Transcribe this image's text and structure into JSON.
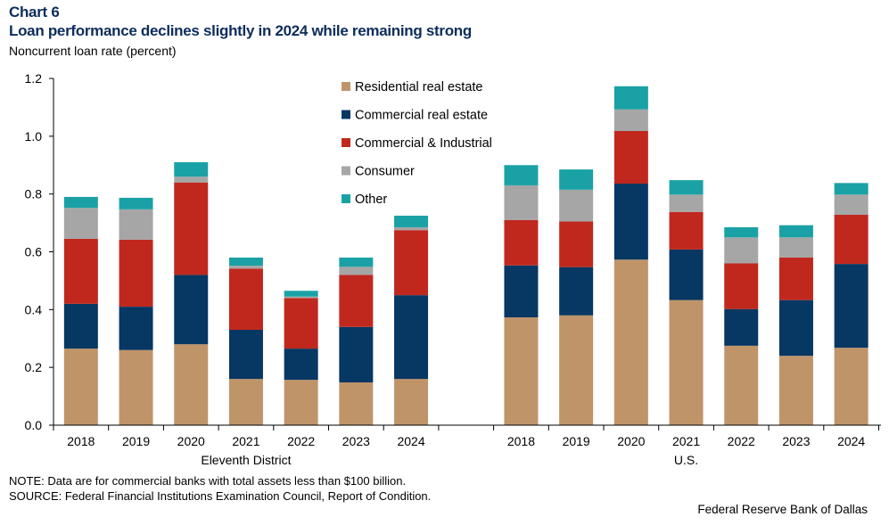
{
  "header": {
    "chart_label": "Chart 6",
    "title": "Loan performance declines slightly in 2024 while remaining strong",
    "ylabel": "Noncurrent  loan rate (percent)"
  },
  "footer": {
    "note": "NOTE: Data are for commercial banks with total assets less than $100 billion.",
    "source": "SOURCE: Federal Financial Institutions  Examination Council, Report of Condition.",
    "credit": "Federal Reserve Bank of Dallas"
  },
  "colors": {
    "residential": "#c09469",
    "commercial_re": "#073763",
    "ci": "#c0281e",
    "consumer": "#a6a6a6",
    "other": "#1aa1a6"
  },
  "chart_data": {
    "type": "bar",
    "stacked": true,
    "title": "Loan performance declines slightly in 2024 while remaining strong",
    "ylabel": "Noncurrent  loan rate (percent)",
    "ylim": [
      0,
      1.2
    ],
    "yticks": [
      "0.0",
      "0.2",
      "0.4",
      "0.6",
      "0.8",
      "1.0",
      "1.2"
    ],
    "legend_position": "top-center",
    "groups": [
      {
        "name": "Eleventh  District",
        "categories": [
          "2018",
          "2019",
          "2020",
          "2021",
          "2022",
          "2023",
          "2024"
        ],
        "series": [
          {
            "name": "Residential  real estate",
            "color_key": "residential",
            "values": [
              0.265,
              0.26,
              0.28,
              0.16,
              0.157,
              0.148,
              0.16
            ]
          },
          {
            "name": "Commercial real estate",
            "color_key": "commercial_re",
            "values": [
              0.155,
              0.15,
              0.24,
              0.17,
              0.108,
              0.192,
              0.29
            ]
          },
          {
            "name": "Commercial & Industrial",
            "color_key": "ci",
            "values": [
              0.225,
              0.232,
              0.32,
              0.212,
              0.175,
              0.18,
              0.225
            ]
          },
          {
            "name": "Consumer",
            "color_key": "consumer",
            "values": [
              0.107,
              0.105,
              0.02,
              0.01,
              0.005,
              0.028,
              0.01
            ]
          },
          {
            "name": "Other",
            "color_key": "other",
            "values": [
              0.038,
              0.04,
              0.05,
              0.028,
              0.02,
              0.032,
              0.04
            ]
          }
        ]
      },
      {
        "name": "U.S.",
        "categories": [
          "2018",
          "2019",
          "2020",
          "2021",
          "2022",
          "2023",
          "2024"
        ],
        "series": [
          {
            "name": "Residential  real estate",
            "color_key": "residential",
            "values": [
              0.373,
              0.38,
              0.573,
              0.433,
              0.275,
              0.24,
              0.268
            ]
          },
          {
            "name": "Commercial real estate",
            "color_key": "commercial_re",
            "values": [
              0.18,
              0.167,
              0.263,
              0.175,
              0.127,
              0.193,
              0.29
            ]
          },
          {
            "name": "Commercial & Industrial",
            "color_key": "ci",
            "values": [
              0.157,
              0.158,
              0.182,
              0.13,
              0.158,
              0.147,
              0.17
            ]
          },
          {
            "name": "Consumer",
            "color_key": "consumer",
            "values": [
              0.12,
              0.11,
              0.075,
              0.06,
              0.09,
              0.07,
              0.07
            ]
          },
          {
            "name": "Other",
            "color_key": "other",
            "values": [
              0.07,
              0.07,
              0.08,
              0.05,
              0.035,
              0.042,
              0.04
            ]
          }
        ]
      }
    ]
  }
}
